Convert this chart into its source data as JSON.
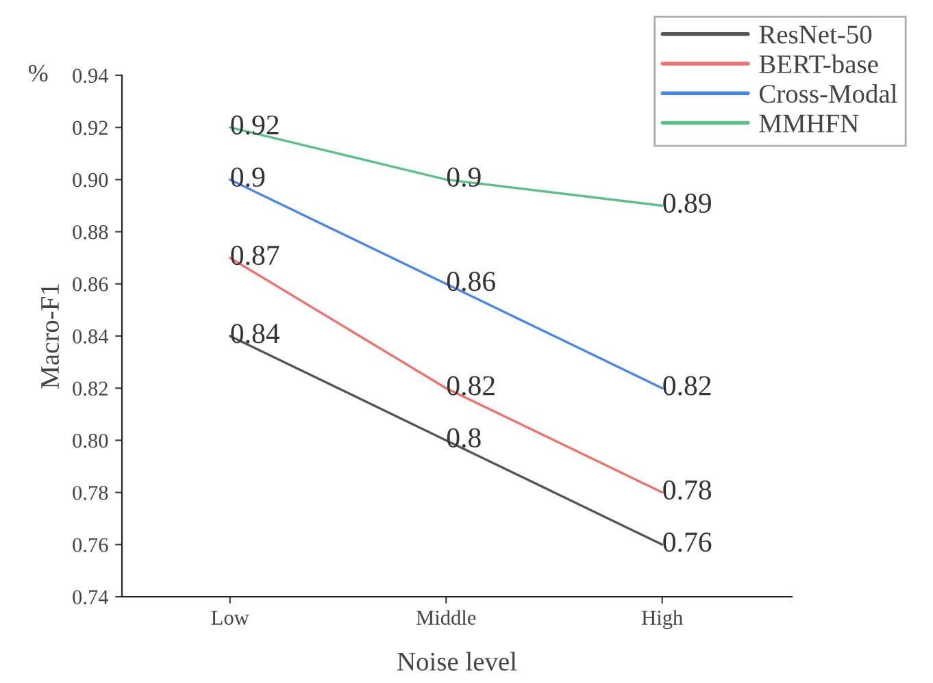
{
  "chart_data": {
    "type": "line",
    "xlabel": "Noise level",
    "ylabel": "Macro-F1",
    "annotations": [
      "%"
    ],
    "categories": [
      "Low",
      "Middle",
      "High"
    ],
    "series": [
      {
        "name": "ResNet-50",
        "color": "#555555",
        "values": [
          0.84,
          0.8,
          0.76
        ]
      },
      {
        "name": "BERT-base",
        "color": "#f07070",
        "values": [
          0.87,
          0.82,
          0.78
        ]
      },
      {
        "name": "Cross-Modal",
        "color": "#4a86e8",
        "values": [
          0.9,
          0.86,
          0.82
        ]
      },
      {
        "name": "MMHFN",
        "color": "#5cc08a",
        "values": [
          0.92,
          0.9,
          0.89
        ]
      }
    ],
    "ylim": [
      0.74,
      0.94
    ],
    "yticks": [
      0.74,
      0.76,
      0.78,
      {
        "value": 0.8,
        "label": "0.80"
      },
      0.82,
      0.84,
      0.86,
      0.88,
      {
        "value": 0.9,
        "label": "0.90"
      },
      0.92,
      0.94
    ],
    "data_labels": true,
    "legend": "top right",
    "grid": false,
    "marker": "none",
    "line_style": "solid"
  }
}
